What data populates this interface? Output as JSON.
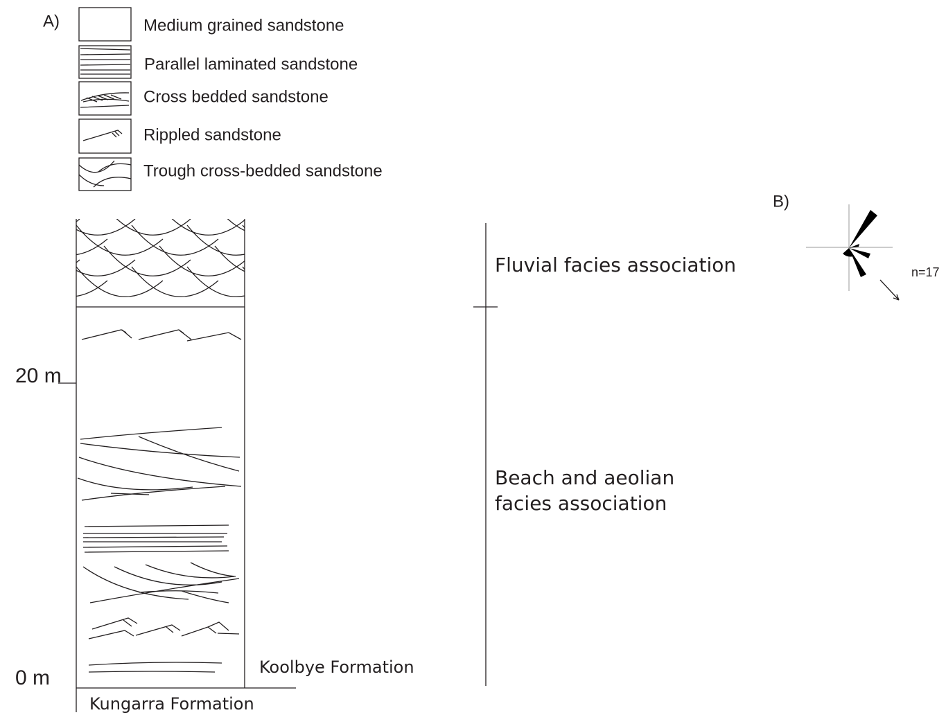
{
  "panel_a": {
    "label": "A)",
    "legend": [
      "Medium grained sandstone",
      "Parallel laminated sandstone",
      "Cross bedded sandstone",
      "Rippled sandstone",
      "Trough cross-bedded sandstone"
    ],
    "scale": [
      "20 m",
      "0 m"
    ],
    "formations": [
      "Koolbye Formation",
      "Kungarra Formation"
    ],
    "facies": {
      "fluvial": "Fluvial facies association",
      "beach": [
        "Beach and aeolian",
        "facies association"
      ]
    }
  },
  "panel_b": {
    "label": "B)",
    "count": "n=17"
  }
}
